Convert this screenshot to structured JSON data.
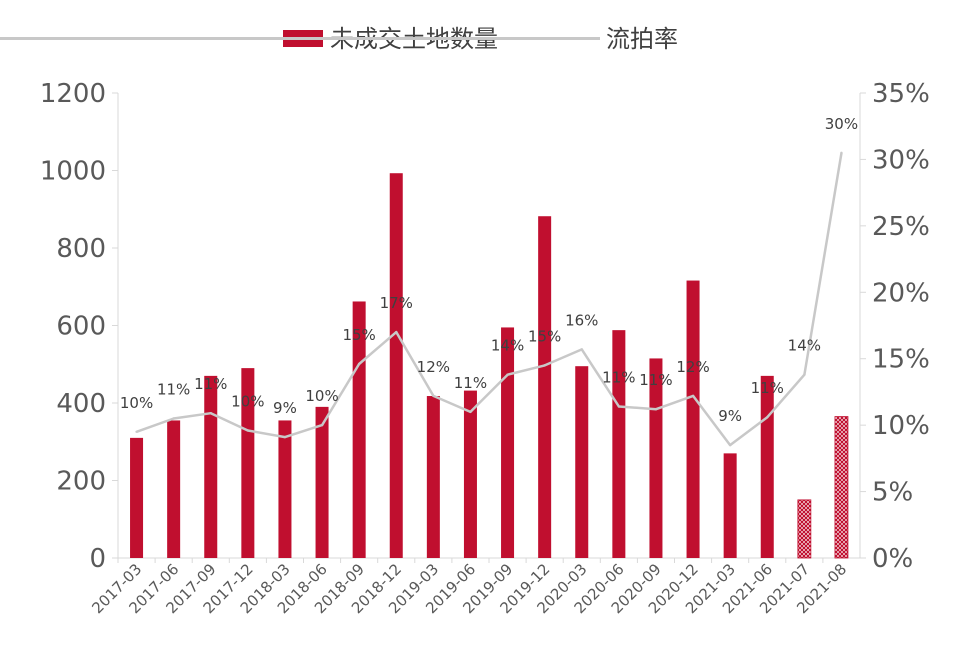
{
  "chart_data": {
    "type": "bar",
    "categories": [
      "2017-03",
      "2017-06",
      "2017-09",
      "2017-12",
      "2018-03",
      "2018-06",
      "2018-09",
      "2018-12",
      "2019-03",
      "2019-06",
      "2019-09",
      "2019-12",
      "2020-03",
      "2020-06",
      "2020-09",
      "2020-12",
      "2021-03",
      "2021-06",
      "2021-07",
      "2021-08"
    ],
    "series": [
      {
        "name": "未成交土地数量",
        "type": "bar",
        "axis": "left",
        "color": "#c00f2f",
        "values": [
          310,
          355,
          470,
          490,
          355,
          390,
          662,
          993,
          418,
          432,
          595,
          882,
          495,
          588,
          515,
          716,
          270,
          470,
          150,
          365
        ],
        "hatched_from_index": 18
      },
      {
        "name": "流拍率",
        "type": "line",
        "axis": "right",
        "color": "#c8c8c8",
        "values": [
          9.5,
          10.5,
          10.9,
          9.6,
          9.1,
          10.0,
          14.6,
          17.0,
          12.2,
          11.0,
          13.8,
          14.5,
          15.7,
          11.4,
          11.2,
          12.2,
          8.5,
          10.6,
          13.8,
          30.5
        ],
        "labels": [
          "10%",
          "11%",
          "11%",
          "10%",
          "9%",
          "10%",
          "15%",
          "17%",
          "12%",
          "11%",
          "14%",
          "15%",
          "16%",
          "11%",
          "11%",
          "12%",
          "9%",
          "11%",
          "14%",
          "30%"
        ]
      }
    ],
    "y_left": {
      "min": 0,
      "max": 1200,
      "ticks": [
        "0",
        "200",
        "400",
        "600",
        "800",
        "1000",
        "1200"
      ]
    },
    "y_right": {
      "min": 0,
      "max": 35,
      "ticks": [
        "0%",
        "5%",
        "10%",
        "15%",
        "20%",
        "25%",
        "30%",
        "35%"
      ]
    },
    "legend_position": "top-center",
    "grid": false
  }
}
